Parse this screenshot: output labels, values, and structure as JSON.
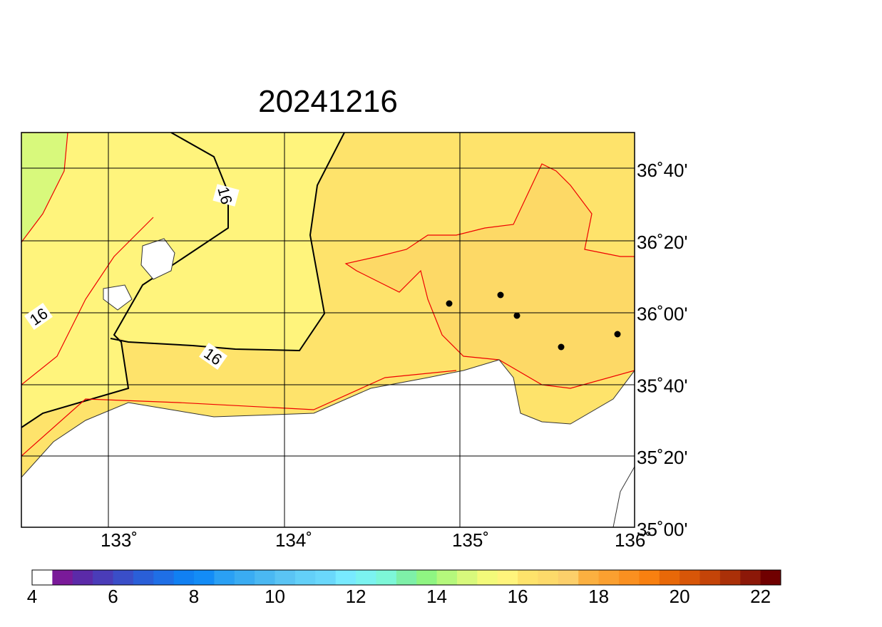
{
  "map": {
    "title": "20241216",
    "lon_labels": [
      "133˚",
      "134˚",
      "135˚",
      "136˚"
    ],
    "lat_labels": [
      "36˚40'",
      "36˚20'",
      "36˚00'",
      "35˚40'",
      "35˚20'",
      "35˚00'"
    ],
    "contour_labels": [
      "16",
      "16",
      "16"
    ],
    "colorbar": {
      "range": [
        4,
        22.5
      ],
      "ticks": [
        4,
        6,
        8,
        10,
        12,
        14,
        16,
        18,
        20,
        22
      ],
      "colors": [
        "#ffffff",
        "#7a1a99",
        "#5b2aa8",
        "#4a3cb8",
        "#3a4ec8",
        "#2a5fd8",
        "#1f6fe6",
        "#1180f2",
        "#138cf6",
        "#2aa0f4",
        "#3aacf2",
        "#4ab8f2",
        "#5ac4f4",
        "#63d0f8",
        "#6ad8fb",
        "#78eaff",
        "#7bf3f0",
        "#7df7d8",
        "#7ef0a8",
        "#8ff582",
        "#b5f87c",
        "#d8f97c",
        "#f3fa7a",
        "#fff47c",
        "#fee36b",
        "#fdda6a",
        "#fccf6a",
        "#fbb040",
        "#fba030",
        "#fa9020",
        "#f88010",
        "#e86808",
        "#d85608",
        "#c44408",
        "#aa3008",
        "#8c1808",
        "#700000"
      ]
    }
  }
}
